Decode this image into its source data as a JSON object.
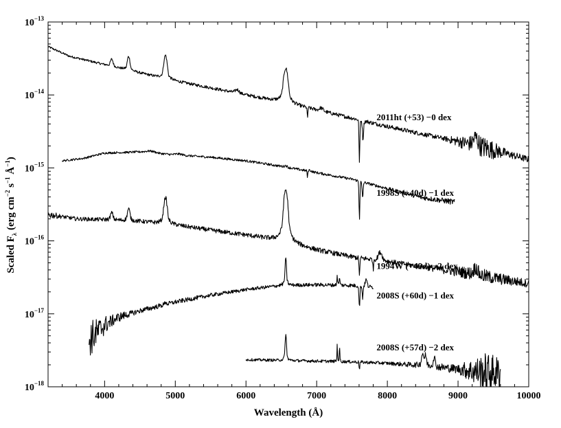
{
  "chart_data": {
    "type": "line",
    "xlabel": "Wavelength (Å)",
    "ylabel": "Scaled F",
    "ylabel_sub": "λ",
    "ylabel_units": "(erg cm",
    "ylabel_units_exp1": "−2",
    "ylabel_units_mid": " s",
    "ylabel_units_exp2": "−1",
    "ylabel_units_mid2": " Å",
    "ylabel_units_exp3": "−1",
    "ylabel_units_end": ")",
    "xlim": [
      3200,
      10000
    ],
    "ylim": [
      1e-18,
      1e-13
    ],
    "yscale": "log",
    "x_ticks": [
      4000,
      5000,
      6000,
      7000,
      8000,
      9000,
      10000
    ],
    "y_ticks": [
      {
        "value": 1e-13,
        "base": "10",
        "exp": "−13"
      },
      {
        "value": 1e-14,
        "base": "10",
        "exp": "−14"
      },
      {
        "value": 1e-15,
        "base": "10",
        "exp": "−15"
      },
      {
        "value": 1e-16,
        "base": "10",
        "exp": "−16"
      },
      {
        "value": 1e-17,
        "base": "10",
        "exp": "−17"
      },
      {
        "value": 1e-18,
        "base": "10",
        "exp": "−18"
      }
    ],
    "series": [
      {
        "name": "2011ht (+53) −0 dex",
        "label_x": 6050,
        "label_y": 5e-15,
        "x0": 3200,
        "x1": 10000,
        "knots": [
          [
            3200,
            4.6e-14
          ],
          [
            3500,
            3.4e-14
          ],
          [
            4000,
            2.6e-14
          ],
          [
            4500,
            2e-14
          ],
          [
            5000,
            1.55e-14
          ],
          [
            5500,
            1.25e-14
          ],
          [
            6000,
            1e-14
          ],
          [
            6500,
            8e-15
          ],
          [
            7000,
            6.2e-15
          ],
          [
            7500,
            4.8e-15
          ],
          [
            8000,
            3.7e-15
          ],
          [
            8500,
            2.9e-15
          ],
          [
            9000,
            2.3e-15
          ],
          [
            9500,
            1.75e-15
          ],
          [
            10000,
            1.3e-15
          ]
        ],
        "lines": [
          [
            4101,
            1.25,
            40
          ],
          [
            4340,
            1.55,
            40
          ],
          [
            4861,
            2.1,
            50
          ],
          [
            5876,
            1.12,
            60
          ],
          [
            6563,
            3.0,
            65
          ],
          [
            7065,
            1.1,
            60
          ],
          [
            9250,
            1.3,
            70
          ]
        ],
        "abs": [
          [
            6870,
            0.7,
            10
          ],
          [
            7605,
            0.25,
            14
          ],
          [
            7655,
            0.55,
            18
          ]
        ],
        "noise": [
          [
            3200,
            0.03
          ],
          [
            8800,
            0.07
          ],
          [
            9400,
            0.35
          ],
          [
            9700,
            0.12
          ],
          [
            10000,
            0.1
          ]
        ]
      },
      {
        "name": "1998S (+40d) −1 dex",
        "label_x": 6050,
        "label_y": 4.6e-16,
        "x0": 3400,
        "x1": 8950,
        "knots": [
          [
            3400,
            1.25e-15
          ],
          [
            3700,
            1.35e-15
          ],
          [
            4000,
            1.6e-15
          ],
          [
            4500,
            1.65e-15
          ],
          [
            5000,
            1.5e-15
          ],
          [
            5500,
            1.4e-15
          ],
          [
            6000,
            1.25e-15
          ],
          [
            6500,
            1.05e-15
          ],
          [
            7000,
            8.6e-16
          ],
          [
            7500,
            7e-16
          ],
          [
            8000,
            5.2e-16
          ],
          [
            8500,
            3.9e-16
          ],
          [
            8950,
            3.4e-16
          ]
        ],
        "lines": [
          [
            4650,
            1.06,
            160
          ],
          [
            5050,
            1.04,
            120
          ],
          [
            6563,
            1.05,
            40
          ],
          [
            6900,
            1.04,
            50
          ]
        ],
        "abs": [
          [
            6870,
            0.8,
            10
          ],
          [
            7605,
            0.3,
            14
          ],
          [
            7650,
            0.6,
            16
          ]
        ],
        "noise": [
          [
            3400,
            0.03
          ],
          [
            7700,
            0.04
          ],
          [
            8500,
            0.07
          ],
          [
            8950,
            0.09
          ]
        ]
      },
      {
        "name": "1994W (+49d) −2 dex",
        "label_x": 6050,
        "label_y": 4.6e-17,
        "x0": 3200,
        "x1": 10000,
        "knots": [
          [
            3200,
            2.3e-16
          ],
          [
            3600,
            2e-16
          ],
          [
            4000,
            1.95e-16
          ],
          [
            4500,
            1.85e-16
          ],
          [
            5000,
            1.65e-16
          ],
          [
            5500,
            1.4e-16
          ],
          [
            6000,
            1.2e-16
          ],
          [
            6500,
            1e-16
          ],
          [
            7000,
            7.5e-17
          ],
          [
            7500,
            6e-17
          ],
          [
            8000,
            5.2e-17
          ],
          [
            8500,
            4.4e-17
          ],
          [
            9000,
            3.8e-17
          ],
          [
            9500,
            3.1e-17
          ],
          [
            10000,
            2.6e-17
          ]
        ],
        "lines": [
          [
            4101,
            1.25,
            40
          ],
          [
            4340,
            1.45,
            40
          ],
          [
            4861,
            2.3,
            50
          ],
          [
            6563,
            5.2,
            60
          ],
          [
            7900,
            1.3,
            60
          ],
          [
            9250,
            1.25,
            60
          ]
        ],
        "abs": [
          [
            7605,
            0.6,
            14
          ],
          [
            7800,
            0.7,
            10
          ]
        ],
        "noise": [
          [
            3200,
            0.12
          ],
          [
            3400,
            0.06
          ],
          [
            8500,
            0.08
          ],
          [
            9300,
            0.22
          ],
          [
            10000,
            0.12
          ]
        ]
      },
      {
        "name": "2008S (+60d) −1 dex",
        "label_x": 6050,
        "label_y": 1.8e-17,
        "x0": 3780,
        "x1": 7800,
        "knots": [
          [
            3780,
            4.5e-18
          ],
          [
            3900,
            5.6e-18
          ],
          [
            4000,
            7e-18
          ],
          [
            4200,
            9e-18
          ],
          [
            4500,
            1.1e-17
          ],
          [
            5000,
            1.45e-17
          ],
          [
            5500,
            1.8e-17
          ],
          [
            6000,
            2.15e-17
          ],
          [
            6500,
            2.45e-17
          ],
          [
            7000,
            2.5e-17
          ],
          [
            7500,
            2.45e-17
          ],
          [
            7800,
            2.3e-17
          ]
        ],
        "lines": [
          [
            4861,
            1.1,
            20
          ],
          [
            6563,
            2.3,
            22
          ],
          [
            7291,
            1.35,
            10
          ],
          [
            7324,
            1.3,
            10
          ],
          [
            7700,
            1.25,
            30
          ]
        ],
        "abs": [
          [
            7605,
            0.5,
            14
          ],
          [
            7650,
            0.65,
            12
          ]
        ],
        "noise": [
          [
            3780,
            0.6
          ],
          [
            3950,
            0.35
          ],
          [
            4100,
            0.18
          ],
          [
            4400,
            0.08
          ],
          [
            6000,
            0.05
          ],
          [
            7800,
            0.06
          ]
        ]
      },
      {
        "name": "2008S (+57d) −2 dex",
        "label_x": 6050,
        "label_y": 3.5e-18,
        "x0": 6000,
        "x1": 9600,
        "knots": [
          [
            6000,
            2.35e-18
          ],
          [
            6500,
            2.3e-18
          ],
          [
            7000,
            2.25e-18
          ],
          [
            7500,
            2.2e-18
          ],
          [
            8000,
            2.1e-18
          ],
          [
            8500,
            1.95e-18
          ],
          [
            9000,
            1.75e-18
          ],
          [
            9300,
            1.6e-18
          ],
          [
            9600,
            1.55e-18
          ]
        ],
        "lines": [
          [
            6563,
            2.3,
            20
          ],
          [
            7291,
            1.7,
            8
          ],
          [
            7324,
            1.6,
            8
          ],
          [
            8500,
            1.45,
            35
          ],
          [
            8542,
            1.35,
            25
          ],
          [
            8662,
            1.35,
            30
          ]
        ],
        "abs": [
          [
            7605,
            0.8,
            10
          ]
        ],
        "noise": [
          [
            6000,
            0.04
          ],
          [
            8000,
            0.05
          ],
          [
            9000,
            0.14
          ],
          [
            9400,
            0.6
          ],
          [
            9600,
            0.5
          ]
        ]
      }
    ]
  }
}
